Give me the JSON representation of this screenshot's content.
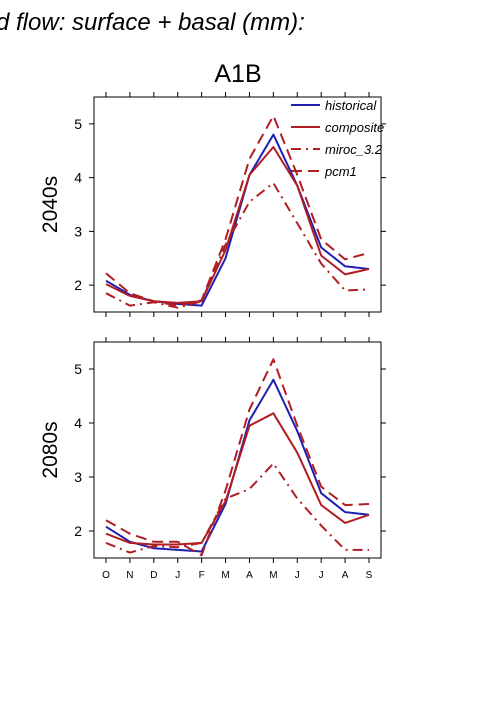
{
  "title": "d flow: surface + basal (mm):",
  "scenario": "A1B",
  "legend": [
    "historical",
    "composite",
    "miroc_3.2",
    "pcm1"
  ],
  "colors": {
    "historical": "#2020b0",
    "scenario": "#b01e24"
  },
  "chart_data": [
    {
      "type": "line",
      "panel_label": "2040s",
      "categories": [
        "O",
        "N",
        "D",
        "J",
        "F",
        "M",
        "A",
        "M",
        "J",
        "J",
        "A",
        "S"
      ],
      "ylim": [
        1.5,
        5.5
      ],
      "yticks": [
        2,
        3,
        4,
        5
      ],
      "series": [
        {
          "name": "historical",
          "style": "solid-blue",
          "values": [
            2.08,
            1.82,
            1.7,
            1.65,
            1.62,
            2.5,
            4.05,
            4.8,
            3.85,
            2.7,
            2.35,
            2.3
          ]
        },
        {
          "name": "composite",
          "style": "solid-red",
          "values": [
            2.02,
            1.8,
            1.7,
            1.67,
            1.7,
            2.65,
            4.05,
            4.57,
            3.85,
            2.55,
            2.2,
            2.3
          ]
        },
        {
          "name": "miroc_3.2",
          "style": "dashdot-red",
          "values": [
            1.85,
            1.62,
            1.68,
            1.58,
            1.7,
            2.75,
            3.55,
            3.9,
            3.15,
            2.4,
            1.9,
            1.92
          ]
        },
        {
          "name": "pcm1",
          "style": "dash-red",
          "values": [
            2.22,
            1.85,
            1.7,
            1.62,
            1.72,
            2.85,
            4.35,
            5.15,
            4.05,
            2.85,
            2.48,
            2.6
          ]
        }
      ]
    },
    {
      "type": "line",
      "panel_label": "2080s",
      "categories": [
        "O",
        "N",
        "D",
        "J",
        "F",
        "M",
        "A",
        "M",
        "J",
        "J",
        "A",
        "S"
      ],
      "ylim": [
        1.5,
        5.5
      ],
      "yticks": [
        2,
        3,
        4,
        5
      ],
      "series": [
        {
          "name": "historical",
          "style": "solid-blue",
          "values": [
            2.08,
            1.8,
            1.68,
            1.65,
            1.62,
            2.5,
            4.05,
            4.8,
            3.85,
            2.7,
            2.35,
            2.3
          ]
        },
        {
          "name": "composite",
          "style": "solid-red",
          "values": [
            1.95,
            1.78,
            1.75,
            1.75,
            1.78,
            2.55,
            3.95,
            4.18,
            3.45,
            2.48,
            2.15,
            2.3
          ]
        },
        {
          "name": "miroc_3.2",
          "style": "dashdot-red",
          "values": [
            1.78,
            1.6,
            1.72,
            1.7,
            1.78,
            2.6,
            2.78,
            3.25,
            2.6,
            2.1,
            1.65,
            1.65
          ]
        },
        {
          "name": "pcm1",
          "style": "dash-red",
          "values": [
            2.2,
            1.95,
            1.8,
            1.8,
            1.55,
            2.75,
            4.25,
            5.18,
            3.95,
            2.82,
            2.48,
            2.5
          ]
        }
      ]
    }
  ]
}
